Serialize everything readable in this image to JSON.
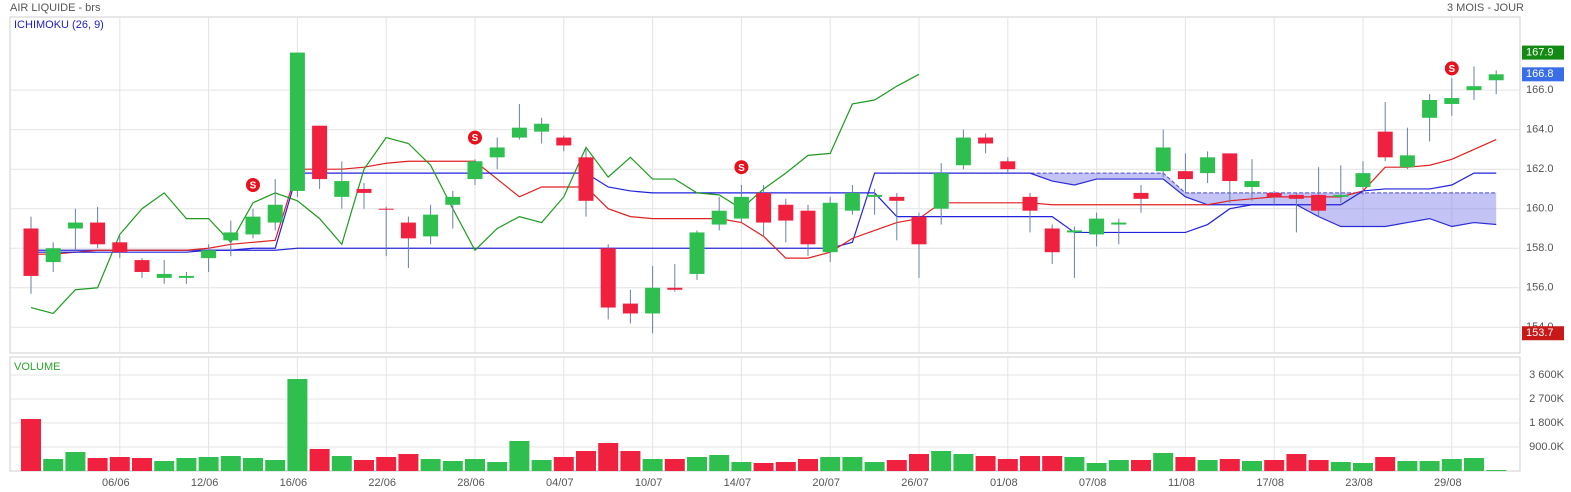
{
  "header": {
    "title": "AIR LIQUIDE - brs",
    "period": "3 MOIS - JOUR"
  },
  "chart_data": {
    "type": "candlestick",
    "indicator": "ICHIMOKU (26, 9)",
    "categories": [
      null,
      null,
      null,
      null,
      "06/06",
      null,
      null,
      null,
      "12/06",
      null,
      null,
      null,
      "16/06",
      null,
      null,
      null,
      "22/06",
      null,
      null,
      null,
      "28/06",
      null,
      null,
      null,
      "04/07",
      null,
      null,
      null,
      "10/07",
      null,
      null,
      null,
      "14/07",
      null,
      null,
      null,
      "20/07",
      null,
      null,
      null,
      "26/07",
      null,
      null,
      null,
      "01/08",
      null,
      null,
      null,
      "07/08",
      null,
      null,
      null,
      "11/08",
      null,
      null,
      null,
      "17/08",
      null,
      null,
      null,
      "23/08",
      null,
      null,
      null,
      "29/08",
      null,
      null
    ],
    "open": [
      159.0,
      157.3,
      159.0,
      159.3,
      158.3,
      157.4,
      156.5,
      156.5,
      157.5,
      158.4,
      158.7,
      159.3,
      160.9,
      164.2,
      160.6,
      161.0,
      160.0,
      159.3,
      158.6,
      160.2,
      161.5,
      162.6,
      163.6,
      163.9,
      163.6,
      162.6,
      158.0,
      155.2,
      154.7,
      156.0,
      156.7,
      159.2,
      159.5,
      160.8,
      160.2,
      159.9,
      157.8,
      159.9,
      160.6,
      160.6,
      159.6,
      160.0,
      162.2,
      163.6,
      162.4,
      160.6,
      159.0,
      158.8,
      158.7,
      159.2,
      160.8,
      161.9,
      161.9,
      161.8,
      162.8,
      161.1,
      160.8,
      160.7,
      160.7,
      160.6,
      161.1,
      163.9,
      162.1,
      164.6,
      165.3,
      166.0,
      166.5
    ],
    "high": [
      159.6,
      158.3,
      160.0,
      160.1,
      158.6,
      157.5,
      157.4,
      156.8,
      158.2,
      159.4,
      160.0,
      161.5,
      167.9,
      164.2,
      162.4,
      161.3,
      160.1,
      159.6,
      160.2,
      160.9,
      162.5,
      163.6,
      165.3,
      164.6,
      163.7,
      163.0,
      158.2,
      155.9,
      157.1,
      157.2,
      158.9,
      160.6,
      161.2,
      161.2,
      160.5,
      160.2,
      160.6,
      161.2,
      161.0,
      160.8,
      159.8,
      162.3,
      164.0,
      163.8,
      162.6,
      160.8,
      159.2,
      159.1,
      159.8,
      159.5,
      161.2,
      164.0,
      162.8,
      162.9,
      162.8,
      162.5,
      160.9,
      160.8,
      162.1,
      162.2,
      162.4,
      165.4,
      164.1,
      165.8,
      166.6,
      167.2,
      167.0
    ],
    "low": [
      155.7,
      156.8,
      157.8,
      158.0,
      157.5,
      156.5,
      156.2,
      156.2,
      156.8,
      157.6,
      158.5,
      158.9,
      160.6,
      161.0,
      160.0,
      160.0,
      157.6,
      157.0,
      158.2,
      159.0,
      161.2,
      162.0,
      163.5,
      163.3,
      162.9,
      159.6,
      154.4,
      154.2,
      153.7,
      155.8,
      156.4,
      158.9,
      159.3,
      158.6,
      158.3,
      157.6,
      157.3,
      159.7,
      159.7,
      158.4,
      156.5,
      159.2,
      162.0,
      162.8,
      161.8,
      158.8,
      157.2,
      156.5,
      158.1,
      158.2,
      159.8,
      161.6,
      160.8,
      161.3,
      160.3,
      160.4,
      160.2,
      158.8,
      159.6,
      160.3,
      160.7,
      162.4,
      162.0,
      163.4,
      164.7,
      165.5,
      165.8
    ],
    "close": [
      156.6,
      158.0,
      159.3,
      158.2,
      157.8,
      156.8,
      156.7,
      156.6,
      157.9,
      158.8,
      159.6,
      160.2,
      167.9,
      161.5,
      161.4,
      160.8,
      159.95,
      158.5,
      159.7,
      160.6,
      162.4,
      163.1,
      164.1,
      164.3,
      163.2,
      160.4,
      155.0,
      154.7,
      156.0,
      155.9,
      158.8,
      159.9,
      160.6,
      159.3,
      159.4,
      158.2,
      160.3,
      160.8,
      160.7,
      160.4,
      158.2,
      161.8,
      163.6,
      163.3,
      162.0,
      159.9,
      157.8,
      158.9,
      159.5,
      159.3,
      160.5,
      163.1,
      161.5,
      162.6,
      161.4,
      161.4,
      160.6,
      160.5,
      159.9,
      160.7,
      161.8,
      162.6,
      162.7,
      165.5,
      165.6,
      166.2,
      166.8
    ],
    "up_color": "#2ebf4f",
    "down_color": "#f0203f",
    "ylim": [
      152.7,
      169.7
    ],
    "yticks": [
      {
        "value": 154,
        "label": "154.0"
      },
      {
        "value": 156,
        "label": "156.0"
      },
      {
        "value": 158,
        "label": "158.0"
      },
      {
        "value": 160,
        "label": "160.0"
      },
      {
        "value": 162,
        "label": "162.0"
      },
      {
        "value": 164,
        "label": "164.0"
      },
      {
        "value": 166,
        "label": "166.0"
      }
    ],
    "grid": true,
    "lines": [
      {
        "color": "#e02020",
        "values": [
          157.7,
          157.7,
          157.8,
          157.9,
          157.9,
          157.9,
          157.9,
          157.9,
          158.0,
          158.2,
          158.3,
          158.4,
          162.0,
          162.0,
          162.0,
          162.1,
          162.3,
          162.4,
          162.4,
          162.4,
          162.4,
          161.5,
          160.6,
          161.1,
          161.1,
          161.1,
          160.0,
          159.6,
          159.5,
          159.5,
          159.5,
          159.5,
          159.3,
          158.6,
          157.5,
          157.5,
          157.8,
          158.5,
          158.9,
          159.3,
          159.5,
          160.3,
          160.3,
          160.3,
          160.3,
          160.3,
          160.2,
          160.2,
          160.2,
          160.2,
          160.2,
          160.2,
          160.2,
          160.2,
          160.4,
          160.5,
          160.6,
          160.6,
          160.6,
          160.6,
          160.9,
          162.1,
          162.1,
          162.2,
          162.5,
          163.0,
          163.5
        ]
      },
      {
        "color": "#2020dd",
        "values": [
          157.8,
          157.8,
          157.8,
          157.8,
          157.8,
          157.8,
          157.8,
          157.8,
          157.9,
          157.9,
          158.0,
          158.0,
          161.8,
          161.8,
          161.8,
          161.8,
          161.8,
          161.8,
          161.8,
          161.8,
          161.8,
          161.8,
          161.8,
          161.8,
          161.8,
          161.8,
          161.1,
          160.9,
          160.8,
          160.8,
          160.8,
          160.8,
          160.8,
          160.8,
          160.8,
          160.8,
          160.8,
          160.8,
          160.8,
          159.6,
          159.6,
          159.6,
          159.6,
          159.6,
          159.6,
          159.6,
          159.6,
          158.8,
          158.8,
          158.8,
          158.8,
          158.8,
          158.8,
          159.2,
          160.0,
          160.2,
          160.2,
          160.2,
          160.2,
          160.2,
          160.9,
          161.0,
          161.0,
          161.0,
          161.2,
          161.8,
          161.8
        ]
      },
      {
        "color": "#1f9a1f",
        "values": [
          155.0,
          154.7,
          155.9,
          156.0,
          158.7,
          160.0,
          160.8,
          159.5,
          159.5,
          158.3,
          160.3,
          160.8,
          160.4,
          159.5,
          158.2,
          162.0,
          163.6,
          163.3,
          162.2,
          160.0,
          157.9,
          159.0,
          159.6,
          159.3,
          160.6,
          163.1,
          161.6,
          162.6,
          161.5,
          161.5,
          160.8,
          160.7,
          160.0,
          161.0,
          161.8,
          162.7,
          162.8,
          165.3,
          165.5,
          166.2,
          166.8,
          null,
          null,
          null,
          null,
          null,
          null,
          null,
          null,
          null,
          null,
          null,
          null,
          null,
          null,
          null,
          null,
          null,
          null,
          null,
          null,
          null,
          null,
          null,
          null,
          null,
          null
        ]
      }
    ],
    "cloud": {
      "color": "#7b7bea",
      "a": [
        null,
        null,
        null,
        null,
        null,
        null,
        null,
        null,
        null,
        null,
        null,
        null,
        null,
        null,
        null,
        null,
        null,
        null,
        null,
        null,
        null,
        null,
        null,
        null,
        null,
        null,
        null,
        null,
        null,
        null,
        null,
        null,
        null,
        null,
        null,
        null,
        null,
        null,
        161.8,
        161.8,
        161.8,
        161.8,
        161.8,
        161.8,
        161.8,
        161.8,
        161.8,
        161.8,
        161.8,
        161.8,
        161.8,
        161.8,
        160.8,
        160.8,
        160.8,
        160.8,
        160.8,
        160.8,
        160.8,
        160.8,
        160.8,
        160.8,
        160.8,
        160.8,
        160.8,
        160.8,
        160.8
      ],
      "b": [
        157.9,
        157.9,
        157.9,
        157.9,
        157.9,
        157.9,
        157.9,
        157.9,
        157.9,
        157.9,
        157.9,
        157.9,
        158.0,
        158.0,
        158.0,
        158.0,
        158.0,
        158.0,
        158.0,
        158.0,
        158.0,
        158.0,
        158.0,
        158.0,
        158.0,
        158.0,
        158.0,
        158.0,
        158.0,
        158.0,
        158.0,
        158.0,
        158.0,
        158.0,
        158.0,
        158.0,
        158.0,
        158.3,
        161.8,
        161.8,
        161.8,
        161.8,
        161.8,
        161.8,
        161.8,
        161.8,
        161.4,
        161.2,
        161.5,
        161.5,
        161.5,
        161.5,
        160.6,
        160.2,
        160.2,
        160.2,
        160.2,
        160.2,
        159.6,
        159.1,
        159.1,
        159.1,
        159.3,
        159.5,
        159.1,
        159.3,
        159.2
      ]
    },
    "signal_label": "S",
    "signal_color": "#e8101c",
    "signals": [
      null,
      null,
      null,
      null,
      null,
      null,
      null,
      null,
      null,
      null,
      161.2,
      null,
      null,
      null,
      null,
      null,
      null,
      null,
      null,
      null,
      163.6,
      null,
      null,
      null,
      null,
      null,
      null,
      null,
      null,
      null,
      null,
      null,
      162.1,
      null,
      null,
      null,
      null,
      null,
      null,
      null,
      null,
      null,
      null,
      null,
      null,
      null,
      null,
      null,
      null,
      null,
      null,
      null,
      null,
      null,
      null,
      null,
      null,
      null,
      null,
      null,
      null,
      null,
      null,
      null,
      167.1,
      null,
      null
    ],
    "price_labels": [
      {
        "value": 167.9,
        "color": "#138a13"
      },
      {
        "value": 166.8,
        "color": "#3a6de8"
      },
      {
        "value": 153.7,
        "color": "#c81818"
      }
    ],
    "volume": {
      "title": "VOLUME",
      "values": [
        1950000,
        450000,
        712000,
        487000,
        525000,
        487000,
        375000,
        487000,
        525000,
        562000,
        487000,
        412000,
        3450000,
        825000,
        562000,
        412000,
        525000,
        637000,
        450000,
        375000,
        450000,
        337000,
        1125000,
        412000,
        525000,
        750000,
        1050000,
        750000,
        450000,
        450000,
        525000,
        600000,
        337000,
        300000,
        337000,
        450000,
        525000,
        525000,
        337000,
        412000,
        637000,
        750000,
        637000,
        562000,
        450000,
        562000,
        562000,
        525000,
        300000,
        412000,
        412000,
        675000,
        525000,
        412000,
        450000,
        375000,
        412000,
        637000,
        412000,
        337000,
        300000,
        525000,
        375000,
        375000,
        450000,
        487000,
        37000
      ],
      "ylim": [
        0,
        4275000
      ],
      "yticks": [
        {
          "value": 900000,
          "label": "900.0K"
        },
        {
          "value": 1800000,
          "label": "1 800K"
        },
        {
          "value": 2700000,
          "label": "2 700K"
        },
        {
          "value": 3600000,
          "label": "3 600K"
        }
      ]
    }
  }
}
